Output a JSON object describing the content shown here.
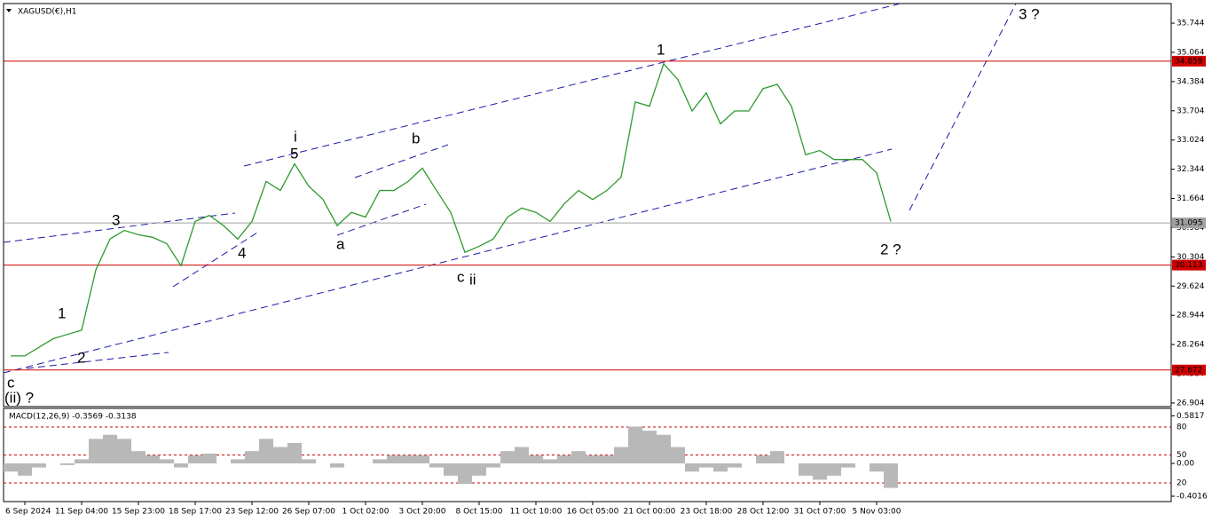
{
  "chart_data": [
    {
      "type": "line",
      "title": "XAGUSD(€),H1",
      "categories": [
        null,
        "6 Sep 2024",
        null,
        null,
        null,
        "11 Sep 04:00",
        null,
        null,
        null,
        "15 Sep 23:00",
        null,
        null,
        null,
        "18 Sep 17:00",
        null,
        null,
        null,
        "23 Sep 12:00",
        null,
        null,
        null,
        "26 Sep 07:00",
        null,
        null,
        null,
        "1 Oct 02:00",
        null,
        null,
        null,
        "3 Oct 20:00",
        null,
        null,
        null,
        "8 Oct 15:00",
        null,
        null,
        null,
        "11 Oct 10:00",
        null,
        null,
        null,
        "16 Oct 05:00",
        null,
        null,
        null,
        "21 Oct 00:00",
        null,
        null,
        null,
        "23 Oct 18:00",
        null,
        null,
        null,
        "28 Oct 12:00",
        null,
        null,
        null,
        "31 Oct 07:00",
        null,
        null,
        null,
        "5 Nov 03:00",
        null
      ],
      "series": [
        {
          "name": "XAGUSD(€),H1",
          "color": "#2e9a2e",
          "values": [
            28.0,
            28.0,
            28.2,
            28.4,
            28.5,
            28.6,
            30.0,
            30.72,
            30.92,
            30.82,
            30.76,
            30.61,
            30.1,
            31.13,
            31.27,
            31.03,
            30.72,
            31.13,
            32.06,
            31.85,
            32.47,
            31.95,
            31.64,
            31.03,
            31.34,
            31.23,
            31.85,
            31.85,
            32.06,
            32.37,
            31.85,
            31.34,
            30.41,
            30.55,
            30.72,
            31.23,
            31.44,
            31.34,
            31.13,
            31.54,
            31.85,
            31.64,
            31.85,
            32.16,
            33.91,
            33.81,
            34.8,
            34.43,
            33.7,
            34.12,
            33.4,
            33.7,
            33.7,
            34.22,
            34.32,
            33.81,
            32.68,
            32.78,
            32.57,
            32.57,
            32.57,
            32.26,
            31.13
          ]
        }
      ],
      "ylim": [
        26.82,
        36.2
      ],
      "yticks": [
        35.744,
        35.064,
        34.384,
        33.704,
        33.024,
        32.344,
        31.664,
        30.984,
        30.304,
        29.624,
        28.944,
        28.264,
        27.584,
        26.904
      ],
      "levels": [
        34.859,
        31.095,
        30.113,
        27.672
      ],
      "level_colors": [
        "#d00000",
        "#a0a0a0",
        "#d00000",
        "#d00000"
      ],
      "annotations": [
        {
          "text": "3 ?",
          "color": "#000000"
        },
        {
          "text": "1",
          "color": "#000000"
        },
        {
          "text": "i",
          "color": "#e020e0"
        },
        {
          "text": "5",
          "color": "#000000"
        },
        {
          "text": "b",
          "color": "#000000"
        },
        {
          "text": "3",
          "color": "#000000"
        },
        {
          "text": "4",
          "color": "#000000"
        },
        {
          "text": "a",
          "color": "#000000"
        },
        {
          "text": "c",
          "color": "#000000"
        },
        {
          "text": "ii",
          "color": "#e020e0"
        },
        {
          "text": "2 ?",
          "color": "#000000"
        },
        {
          "text": "1",
          "color": "#000000"
        },
        {
          "text": "2",
          "color": "#000000"
        },
        {
          "text": "c",
          "color": "#e020e0"
        },
        {
          "text": "(ii) ?",
          "color": "#1a1ad0"
        }
      ]
    },
    {
      "type": "bar",
      "title": "MACD(12,26,9) -0.3569 -0.3138",
      "color": "#b8b8b8",
      "values": [
        -0.1,
        -0.15,
        -0.05,
        0.0,
        -0.02,
        0.05,
        0.3,
        0.35,
        0.3,
        0.15,
        0.1,
        0.05,
        -0.05,
        0.1,
        0.12,
        0.0,
        0.05,
        0.15,
        0.3,
        0.2,
        0.25,
        0.05,
        0.0,
        -0.05,
        0.0,
        0.0,
        0.05,
        0.1,
        0.1,
        0.1,
        -0.05,
        -0.15,
        -0.25,
        -0.15,
        -0.05,
        0.15,
        0.2,
        0.1,
        0.05,
        0.1,
        0.15,
        0.1,
        0.1,
        0.2,
        0.45,
        0.4,
        0.35,
        0.2,
        -0.1,
        -0.05,
        -0.1,
        -0.05,
        0.0,
        0.1,
        0.15,
        0.0,
        -0.15,
        -0.2,
        -0.15,
        -0.05,
        0.0,
        -0.1,
        -0.3
      ],
      "ylim": [
        -0.467,
        0.673
      ],
      "yticks": [
        0.5817,
        {
          "value": 0,
          "label": "0.00"
        },
        -0.4016
      ],
      "y2lim": [
        0,
        100
      ],
      "y2ticks": [
        80,
        50,
        20
      ],
      "y2_color": "#d00000"
    }
  ]
}
